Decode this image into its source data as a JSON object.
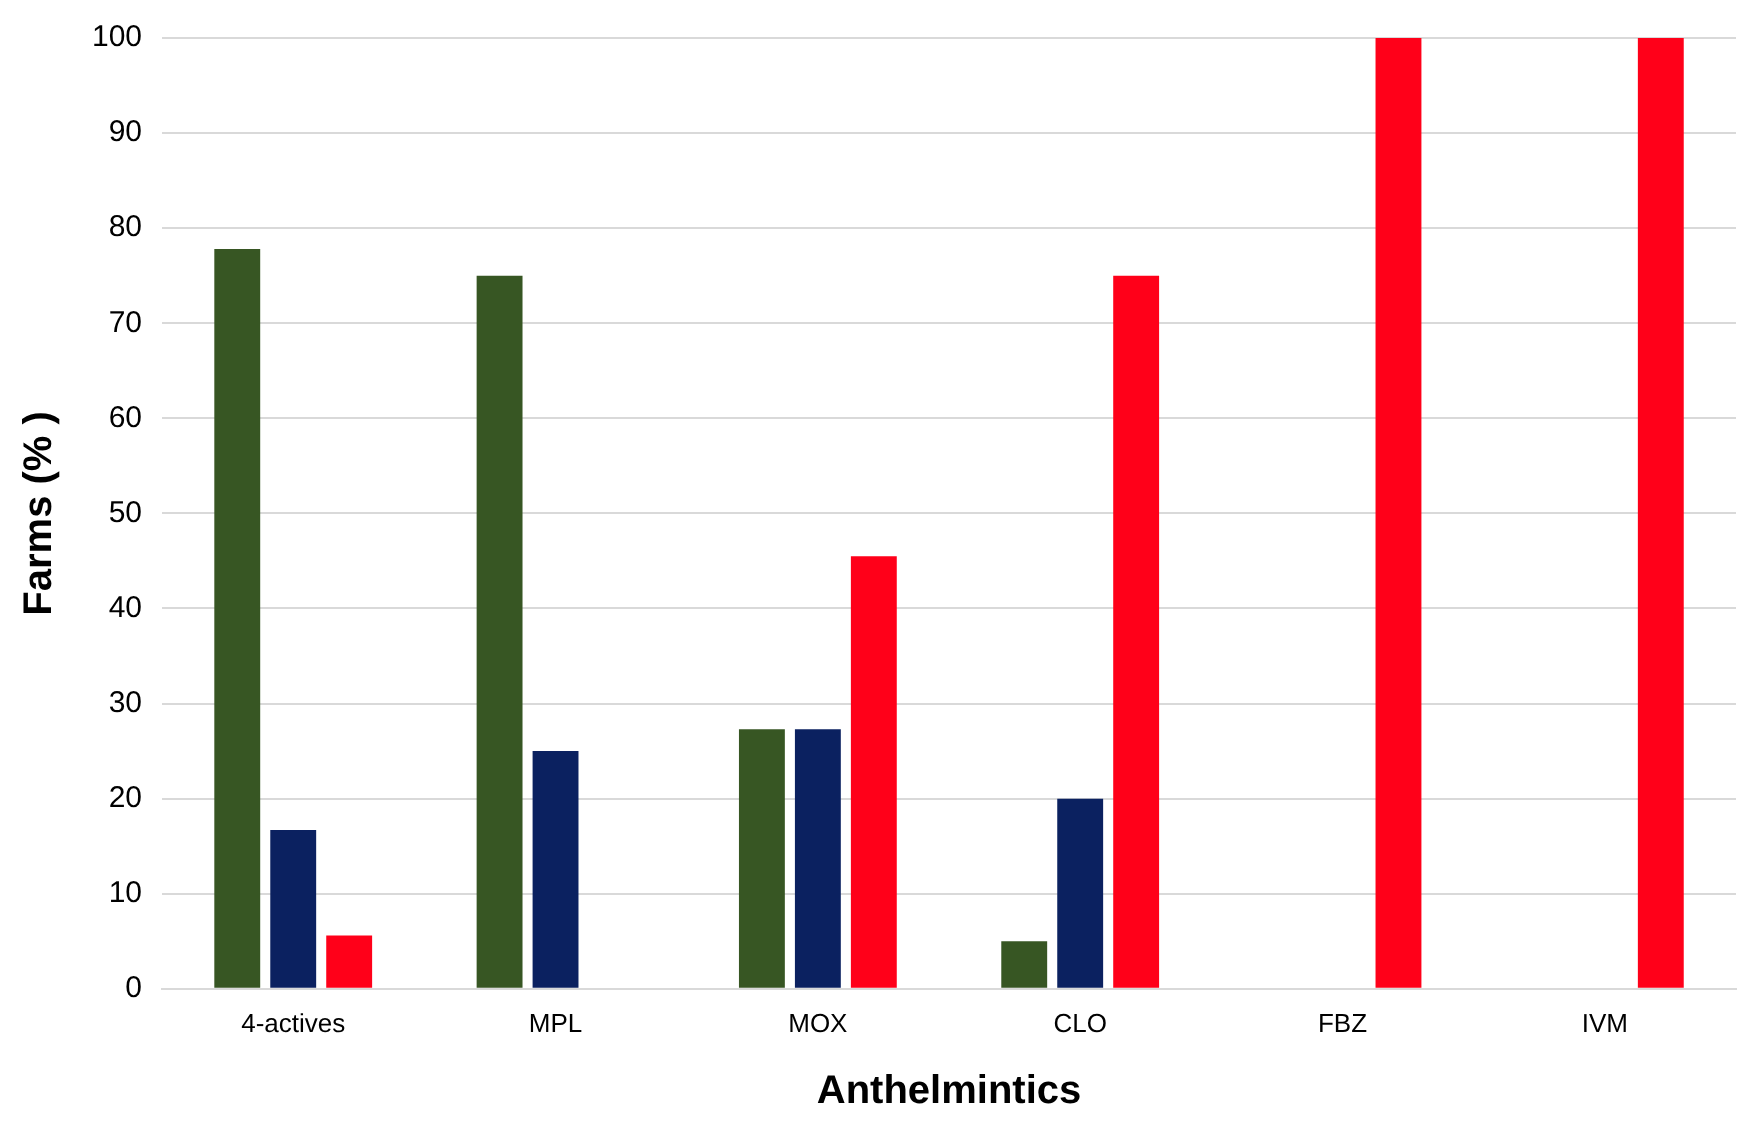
{
  "chart_data": {
    "type": "bar",
    "xlabel": "Anthelmintics",
    "ylabel": "Farms (% )",
    "categories": [
      "4-actives",
      "MPL",
      "MOX",
      "CLO",
      "FBZ",
      "IVM"
    ],
    "series": [
      {
        "color": "#375623",
        "values": [
          77.8,
          75,
          27.3,
          5,
          0,
          0
        ]
      },
      {
        "color": "#0b2160",
        "values": [
          16.7,
          25,
          27.3,
          20,
          0,
          0
        ]
      },
      {
        "color": "#ff0019",
        "values": [
          5.6,
          0,
          45.5,
          75,
          100,
          100
        ]
      }
    ],
    "ylim": [
      0,
      100
    ],
    "yticks": [
      0,
      10,
      20,
      30,
      40,
      50,
      60,
      70,
      80,
      90,
      100
    ],
    "grid": "y",
    "legend": false
  }
}
